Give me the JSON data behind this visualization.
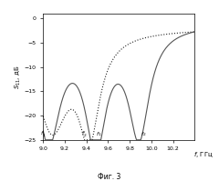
{
  "title": "",
  "ylabel": "$S_{11}$, дБ",
  "xlabel": "$f$, ГГц",
  "fig_label": "Фиг. 3",
  "xlim": [
    9.0,
    10.4
  ],
  "ylim": [
    -25,
    1
  ],
  "yticks": [
    0,
    -5,
    -10,
    -15,
    -20,
    -25
  ],
  "xticks": [
    9.0,
    9.2,
    9.4,
    9.6,
    9.8,
    10.0,
    10.2
  ],
  "curve1_color": "#555555",
  "curve2_color": "#222222"
}
